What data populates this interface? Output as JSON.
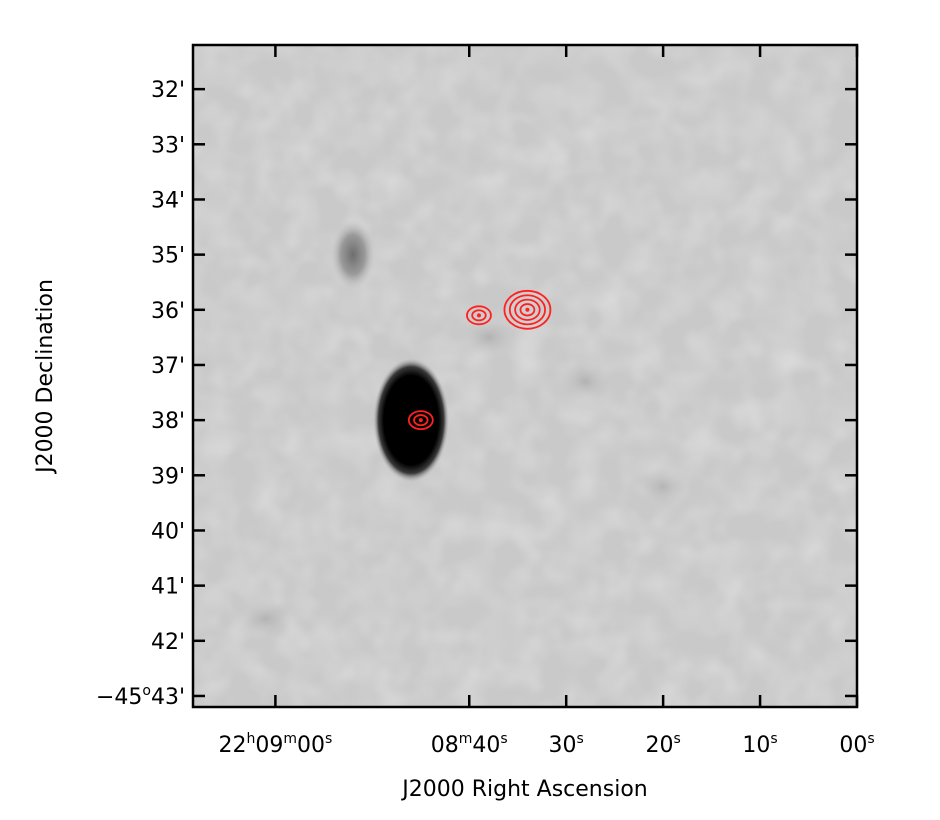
{
  "chart_data": {
    "type": "heatmap",
    "title": "",
    "xlabel": "J2000 Right Ascension",
    "ylabel": "J2000 Declination",
    "colormap": "grayscale",
    "contour_color": "#ff2020",
    "y_ticks": [
      {
        "label": "32'",
        "arcmin": 32
      },
      {
        "label": "33'",
        "arcmin": 33
      },
      {
        "label": "34'",
        "arcmin": 34
      },
      {
        "label": "35'",
        "arcmin": 35
      },
      {
        "label": "36'",
        "arcmin": 36
      },
      {
        "label": "37'",
        "arcmin": 37
      },
      {
        "label": "38'",
        "arcmin": 38
      },
      {
        "label": "39'",
        "arcmin": 39
      },
      {
        "label": "40'",
        "arcmin": 40
      },
      {
        "label": "41'",
        "arcmin": 41
      },
      {
        "label": "42'",
        "arcmin": 42
      },
      {
        "label": "−45°43'",
        "arcmin": 43,
        "deg_prefix": "−45",
        "deg_sup": "o",
        "rest": "43'"
      }
    ],
    "x_ticks": [
      {
        "sec": 60,
        "parts": [
          [
            "22",
            false
          ],
          [
            "h",
            true
          ],
          [
            "09",
            false
          ],
          [
            "m",
            true
          ],
          [
            "00",
            false
          ],
          [
            "s",
            true
          ]
        ]
      },
      {
        "sec": 40,
        "parts": [
          [
            "08",
            false
          ],
          [
            "m",
            true
          ],
          [
            "40",
            false
          ],
          [
            "s",
            true
          ]
        ]
      },
      {
        "sec": 30,
        "parts": [
          [
            "30",
            false
          ],
          [
            "s",
            true
          ]
        ]
      },
      {
        "sec": 20,
        "parts": [
          [
            "20",
            false
          ],
          [
            "s",
            true
          ]
        ]
      },
      {
        "sec": 10,
        "parts": [
          [
            "10",
            false
          ],
          [
            "s",
            true
          ]
        ]
      },
      {
        "sec": 0,
        "parts": [
          [
            "00",
            false
          ],
          [
            "s",
            true
          ]
        ]
      }
    ],
    "x_range_sec": [
      68.5,
      0
    ],
    "y_range_arcmin": [
      31.2,
      43.2
    ],
    "sources": [
      {
        "name": "dark-source",
        "ra_sec": 46,
        "dec_arcmin": 38.0,
        "intensity": "very dark"
      },
      {
        "name": "faint-source",
        "ra_sec": 52,
        "dec_arcmin": 35.0,
        "intensity": "faint"
      }
    ],
    "contour_groups": [
      {
        "name": "contour-bright",
        "ra_sec": 34,
        "dec_arcmin": 36.0,
        "levels": 4
      },
      {
        "name": "contour-mid",
        "ra_sec": 39,
        "dec_arcmin": 36.1,
        "levels": 2
      },
      {
        "name": "contour-dark-src",
        "ra_sec": 45,
        "dec_arcmin": 38.0,
        "levels": 2
      }
    ]
  }
}
